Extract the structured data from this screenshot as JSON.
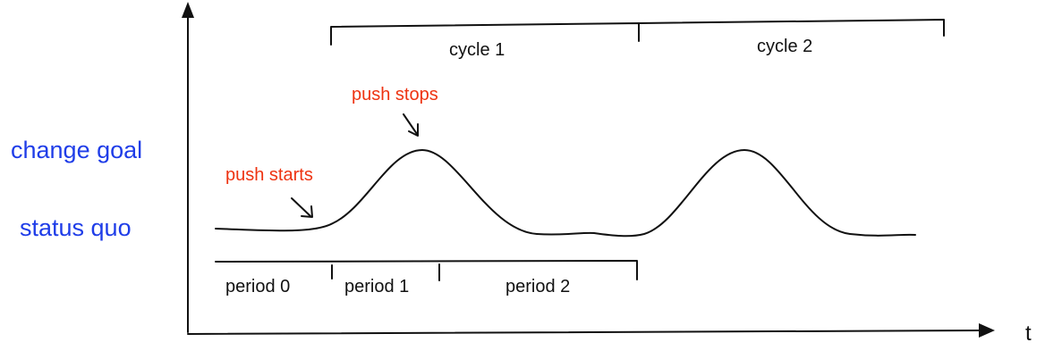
{
  "y_labels": {
    "high": "change goal",
    "low": "status quo"
  },
  "x_axis_label": "t",
  "annotations": {
    "push_starts": "push starts",
    "push_stops": "push stops"
  },
  "cycles": [
    "cycle 1",
    "cycle 2"
  ],
  "periods": [
    "period 0",
    "period 1",
    "period 2"
  ],
  "colors": {
    "axis_labels": "#1f3de8",
    "annotations": "#ee3311",
    "ink": "#111111"
  }
}
